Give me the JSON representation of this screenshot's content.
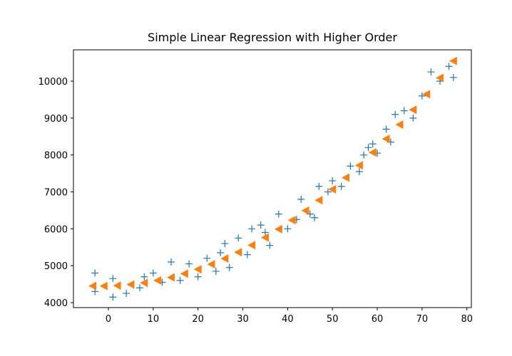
{
  "chart_data": {
    "type": "scatter",
    "title": "Simple Linear Regression with Higher Order",
    "xlim": [
      -7.8,
      81
    ],
    "ylim": [
      3865,
      10849
    ],
    "xticks": [
      0,
      10,
      20,
      30,
      40,
      50,
      60,
      70,
      80
    ],
    "yticks": [
      4000,
      5000,
      6000,
      7000,
      8000,
      9000,
      10000
    ],
    "series": [
      {
        "color": "#1f77b4",
        "marker": "plus",
        "x": [
          -3,
          -3,
          1,
          1,
          4,
          7,
          8,
          10,
          12,
          14,
          16,
          18,
          20,
          22,
          24,
          25,
          26,
          27,
          29,
          31,
          32,
          34,
          35,
          36,
          38,
          40,
          42,
          43,
          45,
          46,
          47,
          49,
          50,
          52,
          54,
          56,
          57,
          58,
          59,
          60,
          62,
          63,
          64,
          66,
          68,
          70,
          72,
          74,
          76,
          77
        ],
        "values": [
          4800,
          4300,
          4650,
          4150,
          4250,
          4400,
          4700,
          4800,
          4550,
          5100,
          4600,
          5050,
          4700,
          5200,
          4850,
          5350,
          5600,
          4950,
          5750,
          5300,
          6000,
          6100,
          5900,
          5550,
          6400,
          6000,
          6250,
          6800,
          6400,
          6300,
          7150,
          7000,
          7300,
          7150,
          7700,
          7550,
          8000,
          8200,
          8300,
          8050,
          8700,
          8350,
          9100,
          9200,
          9000,
          9600,
          10250,
          10000,
          10400,
          10100
        ]
      },
      {
        "color": "#ff7f0e",
        "marker": "triangle-left",
        "x": [
          -3.5,
          -1,
          2,
          5,
          8,
          11,
          14,
          17,
          20,
          23,
          26,
          29,
          32,
          35,
          38,
          41,
          44,
          47,
          50,
          53,
          56,
          59,
          62,
          65,
          68,
          71,
          74,
          77
        ],
        "values": [
          4452,
          4448,
          4460,
          4489,
          4536,
          4601,
          4683,
          4784,
          4903,
          5039,
          5193,
          5365,
          5555,
          5763,
          5989,
          6232,
          6494,
          6773,
          7070,
          7385,
          7718,
          8068,
          8437,
          8823,
          9227,
          9649,
          10090,
          10547
        ]
      }
    ]
  }
}
